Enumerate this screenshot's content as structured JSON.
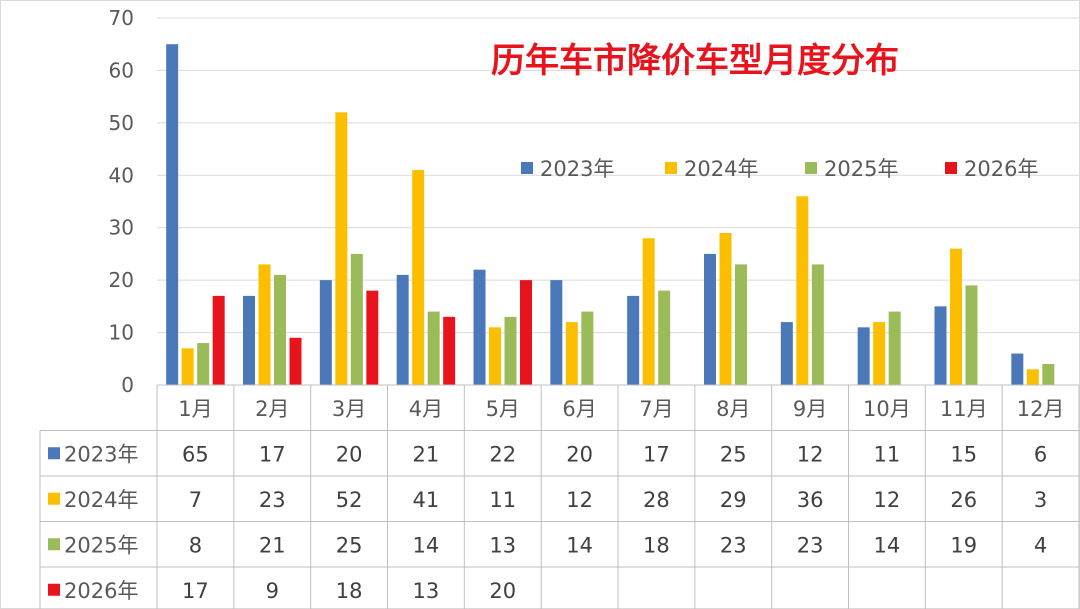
{
  "chart_data": {
    "type": "bar",
    "title": "历年车市降价车型月度分布",
    "xlabel": "",
    "ylabel": "",
    "ylim": [
      0,
      70
    ],
    "yticks": [
      "0",
      "10",
      "20",
      "30",
      "40",
      "50",
      "60",
      "70"
    ],
    "grid": true,
    "legend_position": "top-right",
    "categories": [
      "1月",
      "2月",
      "3月",
      "4月",
      "5月",
      "6月",
      "7月",
      "8月",
      "9月",
      "10月",
      "11月",
      "12月"
    ],
    "series": [
      {
        "name": "2023年",
        "color": "#4a78b8",
        "values": [
          65,
          17,
          20,
          21,
          22,
          20,
          17,
          25,
          12,
          11,
          15,
          6
        ]
      },
      {
        "name": "2024年",
        "color": "#fcbf00",
        "values": [
          7,
          23,
          52,
          41,
          11,
          12,
          28,
          29,
          36,
          12,
          26,
          3
        ]
      },
      {
        "name": "2025年",
        "color": "#9bbb59",
        "values": [
          8,
          21,
          25,
          14,
          13,
          14,
          18,
          23,
          23,
          14,
          19,
          4
        ]
      },
      {
        "name": "2026年",
        "color": "#e8141d",
        "values": [
          17,
          9,
          18,
          13,
          20,
          null,
          null,
          null,
          null,
          null,
          null,
          null
        ]
      }
    ],
    "table": true
  }
}
